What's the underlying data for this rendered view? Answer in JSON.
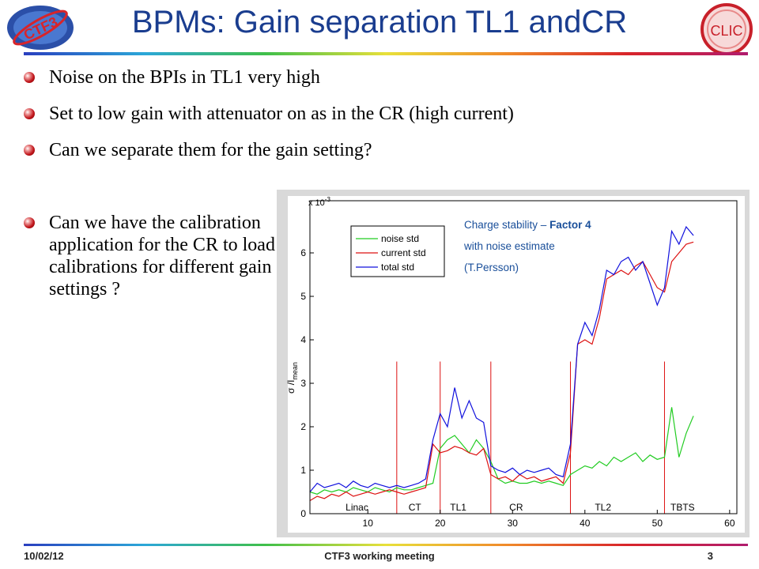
{
  "slide": {
    "title": "BPMs: Gain separation TL1 andCR",
    "logo_left_text": "CTF3",
    "logo_right_text": "CLIC",
    "bullets": [
      "Noise on the BPIs in TL1 very high",
      "Set to low gain with attenuator on as in the CR (high current)",
      "Can we separate them for the gain setting?"
    ],
    "side_bullet": "Can we have the calibration application for the CR to load calibrations for different gain settings ?",
    "footer": {
      "date": "10/02/12",
      "center": "CTF3 working meeting",
      "page": "3"
    }
  },
  "colors": {
    "title": "#1a3d8f",
    "noise": "#22cc22",
    "current": "#dd1111",
    "total": "#1111dd",
    "annotation": "#1a4f9a"
  },
  "chart_data": {
    "type": "line",
    "title": "",
    "xlabel": "",
    "ylabel": "σ /I",
    "ylabel_sub": "mean",
    "y_multiplier": "x 10",
    "y_multiplier_exp": "-3",
    "xlim": [
      2,
      61
    ],
    "ylim": [
      0,
      7.2
    ],
    "xticks": [
      10,
      20,
      30,
      40,
      50,
      60
    ],
    "yticks": [
      0,
      1,
      2,
      3,
      4,
      5,
      6
    ],
    "grid": false,
    "legend": "top-left",
    "annotation": {
      "prefix": "Charge stability – ",
      "bold": "Factor 4",
      "line2": "with noise estimate",
      "line3": "(T.Persson)"
    },
    "regions": [
      {
        "label": "Linac",
        "x": 8.5
      },
      {
        "label": "CT",
        "x": 16.5
      },
      {
        "label": "TL1",
        "x": 22.5
      },
      {
        "label": "CR",
        "x": 30.5
      },
      {
        "label": "TL2",
        "x": 42.5
      },
      {
        "label": "TBTS",
        "x": 53.5
      }
    ],
    "boundaries": [
      14,
      20,
      27,
      38,
      51
    ],
    "series": [
      {
        "name": "noise std",
        "x": [
          2,
          3,
          4,
          5,
          6,
          7,
          8,
          9,
          10,
          11,
          12,
          13,
          14,
          15,
          16,
          17,
          18,
          19,
          20,
          21,
          22,
          23,
          24,
          25,
          26,
          27,
          28,
          29,
          30,
          31,
          32,
          33,
          34,
          35,
          36,
          37,
          38,
          39,
          40,
          41,
          42,
          43,
          44,
          45,
          46,
          47,
          48,
          49,
          50,
          51,
          52,
          53,
          54,
          55
        ],
        "values": [
          0.5,
          0.45,
          0.55,
          0.5,
          0.55,
          0.5,
          0.6,
          0.55,
          0.5,
          0.6,
          0.55,
          0.5,
          0.6,
          0.55,
          0.55,
          0.6,
          0.65,
          0.7,
          1.5,
          1.7,
          1.8,
          1.6,
          1.4,
          1.7,
          1.5,
          1.2,
          0.8,
          0.7,
          0.75,
          0.7,
          0.7,
          0.75,
          0.7,
          0.75,
          0.7,
          0.65,
          0.9,
          1.0,
          1.1,
          1.05,
          1.2,
          1.1,
          1.3,
          1.2,
          1.3,
          1.4,
          1.2,
          1.35,
          1.25,
          1.3,
          2.45,
          1.3,
          1.85,
          2.25
        ]
      },
      {
        "name": "current std",
        "x": [
          2,
          3,
          4,
          5,
          6,
          7,
          8,
          9,
          10,
          11,
          12,
          13,
          14,
          15,
          16,
          17,
          18,
          19,
          20,
          21,
          22,
          23,
          24,
          25,
          26,
          27,
          28,
          29,
          30,
          31,
          32,
          33,
          34,
          35,
          36,
          37,
          38,
          39,
          40,
          41,
          42,
          43,
          44,
          45,
          46,
          47,
          48,
          49,
          50,
          51,
          52,
          53,
          54,
          55
        ],
        "values": [
          0.3,
          0.4,
          0.35,
          0.45,
          0.4,
          0.5,
          0.4,
          0.45,
          0.5,
          0.45,
          0.5,
          0.55,
          0.5,
          0.45,
          0.5,
          0.55,
          0.6,
          1.6,
          1.4,
          1.45,
          1.55,
          1.5,
          1.4,
          1.35,
          1.5,
          0.9,
          0.8,
          0.85,
          0.75,
          0.9,
          0.8,
          0.85,
          0.75,
          0.8,
          0.85,
          0.7,
          1.4,
          3.9,
          4.0,
          3.9,
          4.5,
          5.4,
          5.5,
          5.6,
          5.5,
          5.7,
          5.8,
          5.5,
          5.2,
          5.1,
          5.8,
          6.0,
          6.2,
          6.25
        ]
      },
      {
        "name": "total std",
        "x": [
          2,
          3,
          4,
          5,
          6,
          7,
          8,
          9,
          10,
          11,
          12,
          13,
          14,
          15,
          16,
          17,
          18,
          19,
          20,
          21,
          22,
          23,
          24,
          25,
          26,
          27,
          28,
          29,
          30,
          31,
          32,
          33,
          34,
          35,
          36,
          37,
          38,
          39,
          40,
          41,
          42,
          43,
          44,
          45,
          46,
          47,
          48,
          49,
          50,
          51,
          52,
          53,
          54,
          55
        ],
        "values": [
          0.5,
          0.7,
          0.6,
          0.65,
          0.7,
          0.6,
          0.75,
          0.65,
          0.6,
          0.7,
          0.65,
          0.6,
          0.65,
          0.6,
          0.65,
          0.7,
          0.8,
          1.7,
          2.3,
          2.0,
          2.9,
          2.2,
          2.6,
          2.2,
          2.1,
          1.1,
          1.0,
          0.95,
          1.05,
          0.9,
          1.0,
          0.95,
          1.0,
          1.05,
          0.9,
          0.85,
          1.6,
          3.9,
          4.4,
          4.1,
          4.7,
          5.6,
          5.5,
          5.8,
          5.9,
          5.6,
          5.8,
          5.3,
          4.8,
          5.2,
          6.5,
          6.2,
          6.6,
          6.4
        ]
      }
    ]
  }
}
